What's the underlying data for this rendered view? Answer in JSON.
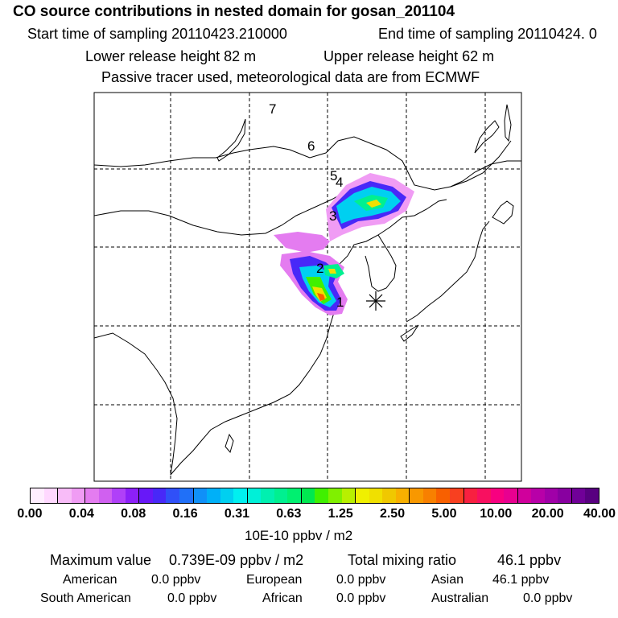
{
  "header": {
    "title": "CO  source contributions in nested domain for gosan_201104",
    "start_label": "Start time of sampling 20110423.210000",
    "end_label": "End time of sampling 20110424.     0",
    "lower_label": "Lower release height   82 m",
    "upper_label": "Upper release height   62 m",
    "tracer_label": "Passive tracer used, meteorological data are from ECMWF"
  },
  "map": {
    "day_markers": [
      "7",
      "6",
      "5",
      "4",
      "3",
      "2",
      "1"
    ],
    "receptor": "gosan"
  },
  "colorbar": {
    "ticks": [
      "0.00",
      "0.04",
      "0.08",
      "0.16",
      "0.31",
      "0.63",
      "1.25",
      "2.50",
      "5.00",
      "10.00",
      "20.00",
      "40.00"
    ],
    "colors": [
      "#ffeeff",
      "#ffd8ff",
      "#f8bcf8",
      "#f09cf4",
      "#e47cf0",
      "#d060f0",
      "#b040f8",
      "#8c20f8",
      "#6818f8",
      "#4828f8",
      "#3050f8",
      "#2070f8",
      "#1090f8",
      "#00b0f8",
      "#00d0f0",
      "#00f0f0",
      "#00f0d8",
      "#00f0b0",
      "#00f090",
      "#00f070",
      "#00e850",
      "#40f000",
      "#80f000",
      "#b8f000",
      "#f0f000",
      "#f0e000",
      "#f0c800",
      "#f8b000",
      "#f89800",
      "#f88000",
      "#f86000",
      "#f84020",
      "#f82040",
      "#f81060",
      "#f80080",
      "#e80090",
      "#d0009c",
      "#b800a8",
      "#a000a8",
      "#8800a0",
      "#700098",
      "#580080"
    ],
    "unit": "10E-10 ppbv / m2"
  },
  "summary": {
    "max_label": "Maximum value",
    "max_value": "0.739E-09 ppbv / m2",
    "total_label": "Total mixing ratio",
    "total_value": "46.1 ppbv"
  },
  "regions": [
    {
      "name": "American",
      "value": "0.0 ppbv"
    },
    {
      "name": "European",
      "value": "0.0 ppbv"
    },
    {
      "name": "Asian",
      "value": "46.1 ppbv"
    },
    {
      "name": "South American",
      "value": "0.0 ppbv"
    },
    {
      "name": "African",
      "value": "0.0 ppbv"
    },
    {
      "name": "Australian",
      "value": "0.0 ppbv"
    }
  ]
}
